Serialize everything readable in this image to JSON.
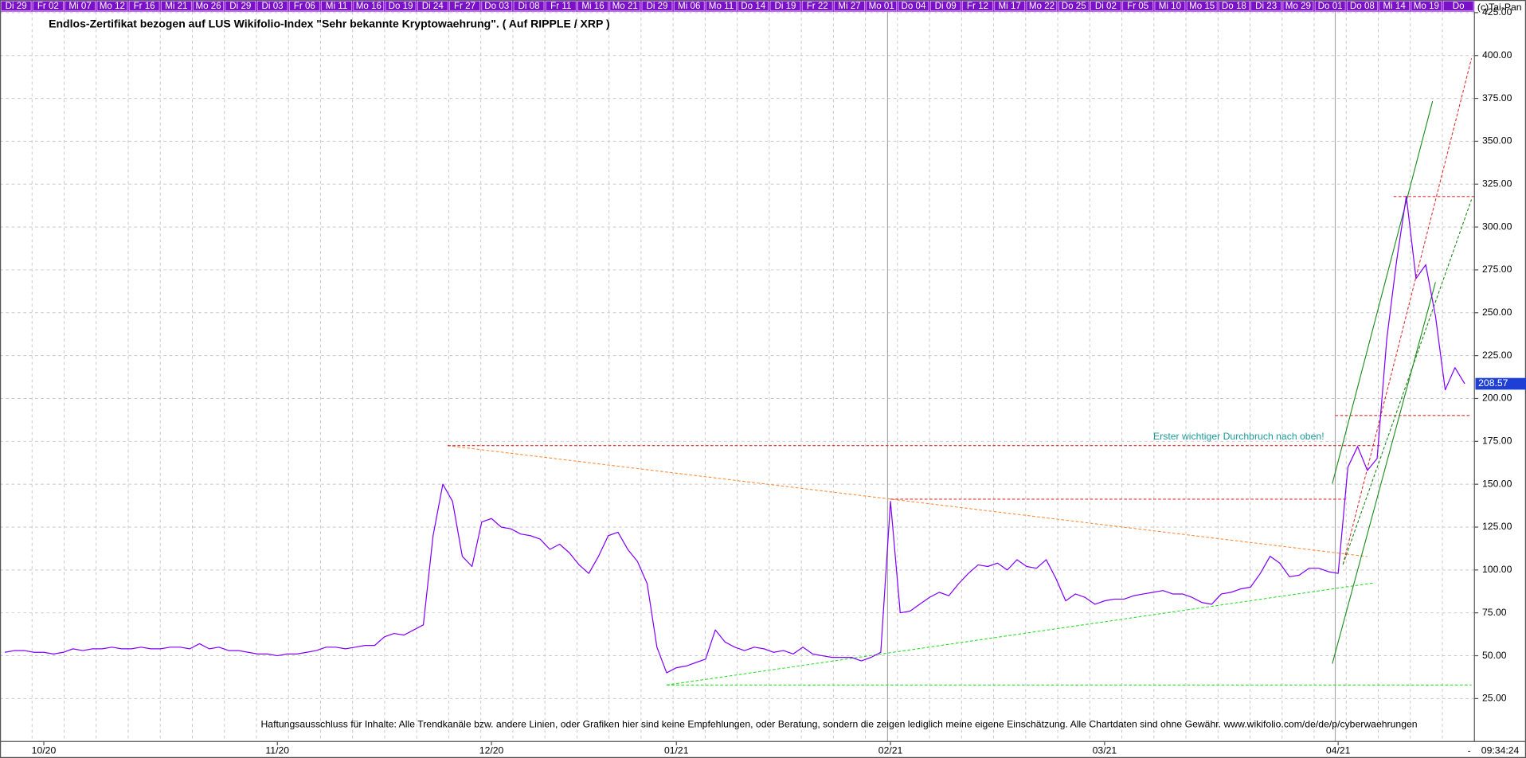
{
  "chart_data": {
    "type": "line",
    "title": "Endlos-Zertifikat bezogen auf LUS Wikifolio-Index \"Sehr bekannte Kryptowaehrung\". ( Auf RIPPLE / XRP )",
    "annotation": "Erster wichtiger Durchbruch nach oben!",
    "disclaimer": "Haftungsausschluss für Inhalte: Alle Trendkanäle bzw. andere Linien, oder Grafiken hier sind keine Empfehlungen, oder Beratung, sondern die zeigen lediglich meine eigene Einschätzung. Alle Chartdaten sind ohne Gewähr.  www.wikifolio.com/de/de/p/cyberwaehrungen",
    "copyright": "(c)Tai-Pan",
    "time_label": "09:34:24",
    "corner_label": "-",
    "top_dates": [
      "Di 29",
      "Fr 02",
      "Mi 07",
      "Mo 12",
      "Fr 16",
      "Mi 21",
      "Mo 26",
      "Di 29",
      "Di 03",
      "Fr 06",
      "Mi 11",
      "Mo 16",
      "Do 19",
      "Di 24",
      "Fr 27",
      "Do 03",
      "Di 08",
      "Fr 11",
      "Mi 16",
      "Mo 21",
      "Di 29",
      "Mi 06",
      "Mo 11",
      "Do 14",
      "Di 19",
      "Fr 22",
      "Mi 27",
      "Mo 01",
      "Do 04",
      "Di 09",
      "Fr 12",
      "Mi 17",
      "Mo 22",
      "Do 25",
      "Di 02",
      "Fr 05",
      "Mi 10",
      "Mo 15",
      "Do 18",
      "Di 23",
      "Mo 29",
      "Do 01",
      "Do 08",
      "Mi 14",
      "Mo 19",
      "Do"
    ],
    "categories": [
      null,
      null,
      null,
      null,
      "10/20",
      null,
      null,
      null,
      null,
      null,
      null,
      null,
      null,
      null,
      null,
      null,
      null,
      null,
      null,
      null,
      null,
      null,
      null,
      null,
      null,
      null,
      null,
      null,
      "11/20",
      null,
      null,
      null,
      null,
      null,
      null,
      null,
      null,
      null,
      null,
      null,
      null,
      null,
      null,
      null,
      null,
      null,
      null,
      null,
      null,
      null,
      "12/20",
      null,
      null,
      null,
      null,
      null,
      null,
      null,
      null,
      null,
      null,
      null,
      null,
      null,
      null,
      null,
      null,
      null,
      null,
      "01/21",
      null,
      null,
      null,
      null,
      null,
      null,
      null,
      null,
      null,
      null,
      null,
      null,
      null,
      null,
      null,
      null,
      null,
      null,
      null,
      null,
      null,
      "02/21",
      null,
      null,
      null,
      null,
      null,
      null,
      null,
      null,
      null,
      null,
      null,
      null,
      null,
      null,
      null,
      null,
      null,
      null,
      null,
      null,
      null,
      "03/21",
      null,
      null,
      null,
      null,
      null,
      null,
      null,
      null,
      null,
      null,
      null,
      null,
      null,
      null,
      null,
      null,
      null,
      null,
      null,
      null,
      null,
      null,
      null,
      "04/21",
      null,
      null,
      null,
      null,
      null,
      null,
      null,
      null,
      null,
      null,
      null,
      null,
      null
    ],
    "series": [
      {
        "color": "#8000ff",
        "values": [
          52,
          53,
          53,
          52,
          52,
          51,
          52,
          54,
          53,
          54,
          54,
          55,
          54,
          54,
          55,
          54,
          54,
          55,
          55,
          54,
          57,
          54,
          55,
          53,
          53,
          52,
          51,
          51,
          50,
          51,
          51,
          52,
          53,
          55,
          55,
          54,
          55,
          56,
          56,
          61,
          63,
          62,
          65,
          68,
          120,
          150,
          140,
          108,
          102,
          128,
          130,
          125,
          124,
          121,
          120,
          118,
          112,
          115,
          110,
          103,
          98,
          108,
          120,
          122,
          112,
          105,
          92,
          55,
          40,
          43,
          44,
          46,
          48,
          65,
          58,
          55,
          53,
          55,
          54,
          52,
          53,
          51,
          55,
          51,
          50,
          49,
          49,
          49,
          47,
          49,
          52,
          140,
          75,
          76,
          80,
          84,
          87,
          85,
          92,
          98,
          103,
          102,
          104,
          100,
          106,
          102,
          101,
          106,
          95,
          82,
          86,
          84,
          80,
          82,
          83,
          83,
          85,
          86,
          87,
          88,
          86,
          86,
          84,
          81,
          80,
          86,
          87,
          89,
          90,
          98,
          108,
          104,
          96,
          97,
          101,
          101,
          99,
          98,
          160,
          172,
          158,
          165,
          235,
          280,
          318,
          270,
          278,
          248,
          205,
          218,
          208.57
        ]
      }
    ],
    "ylim": [
      0,
      425
    ],
    "yticks": [
      {
        "value": 25,
        "label": "25.00"
      },
      {
        "value": 50,
        "label": "50.00"
      },
      {
        "value": 75,
        "label": "75.00"
      },
      {
        "value": 100,
        "label": "100.00"
      },
      {
        "value": 125,
        "label": "125.00"
      },
      {
        "value": 150,
        "label": "150.00"
      },
      {
        "value": 175,
        "label": "175.00"
      },
      {
        "value": 200,
        "label": "200.00"
      },
      {
        "value": 225,
        "label": "225.00"
      },
      {
        "value": 250,
        "label": "250.00"
      },
      {
        "value": 275,
        "label": "275.00"
      },
      {
        "value": 300,
        "label": "300.00"
      },
      {
        "value": 325,
        "label": "325.00"
      },
      {
        "value": 350,
        "label": "350.00"
      },
      {
        "value": 375,
        "label": "375.00"
      },
      {
        "value": 400,
        "label": "400.00"
      },
      {
        "value": 425,
        "label": "425.00"
      }
    ],
    "grid": true
  }
}
